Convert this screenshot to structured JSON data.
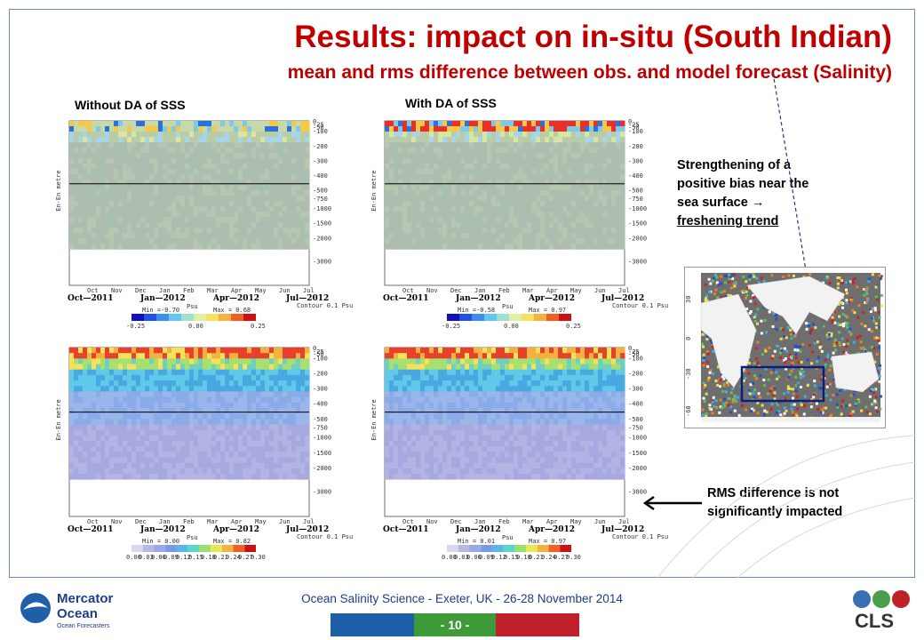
{
  "slide": {
    "title": "Results: impact on in-situ (South Indian)",
    "subtitle": "mean and rms difference between obs. and model forecast (Salinity)",
    "col_left_label": "Without DA of SSS",
    "col_right_label": "With DA of SSS",
    "ylabel": "En-En metre",
    "depth_ticks": [
      "0",
      "-25",
      "-50",
      "-100",
      "-200",
      "-300",
      "-400",
      "-500",
      "-750",
      "-1000",
      "-1500",
      "-2000",
      "-3000"
    ],
    "months": [
      "Oct",
      "Nov",
      "Dec",
      "Jan",
      "Feb",
      "Mar",
      "Apr",
      "May",
      "Jun",
      "Jul"
    ],
    "dates": [
      "Oct—2011",
      "Jan—2012",
      "Apr—2012",
      "Jul—2012"
    ],
    "contour_label": "Contour 0.1 Psu",
    "unit": "Psu",
    "panels": {
      "mean_without": {
        "min": "Min =-0.70",
        "max": "Max = 0.68",
        "scale": [
          "-0.25",
          "0.00",
          "0.25"
        ]
      },
      "mean_with": {
        "min": "Min =-0.58",
        "max": "Max = 0.97",
        "scale": [
          "-0.25",
          "0.00",
          "0.25"
        ]
      },
      "rms_without": {
        "min": "Min = 0.00",
        "max": "Max = 0.82",
        "scale": [
          "0.00",
          "0.03",
          "0.06",
          "0.09",
          "0.12",
          "0.15",
          "0.18",
          "0.21",
          "0.24",
          "0.27",
          "0.30"
        ]
      },
      "rms_with": {
        "min": "Min = 0.01",
        "max": "Max = 0.97",
        "scale": [
          "0.00",
          "0.03",
          "0.06",
          "0.09",
          "0.12",
          "0.15",
          "0.18",
          "0.21",
          "0.24",
          "0.27",
          "0.30"
        ]
      }
    },
    "note_bias": {
      "line1": "Strengthening of a",
      "line2": "positive bias near the",
      "line3": "sea surface →",
      "line4": "freshening trend"
    },
    "note_rms": {
      "line1": "RMS difference is not",
      "line2": "significantly impacted"
    },
    "map_lat_labels": [
      "30",
      "0",
      "-30",
      "-60"
    ]
  },
  "footer": {
    "text": "Ocean Salinity Science - Exeter, UK - 26-28 November 2014",
    "page": "- 10 -",
    "logo_left_line1": "Mercator",
    "logo_left_line2": "Ocean",
    "logo_left_line3": "Ocean Forecasters",
    "logo_right": "CLS"
  },
  "colors": {
    "title": "#c00000",
    "footer_text": "#1f3c88",
    "bar_blue": "#1f5fa8",
    "bar_green": "#3f9a3a",
    "bar_red": "#c0202a"
  }
}
